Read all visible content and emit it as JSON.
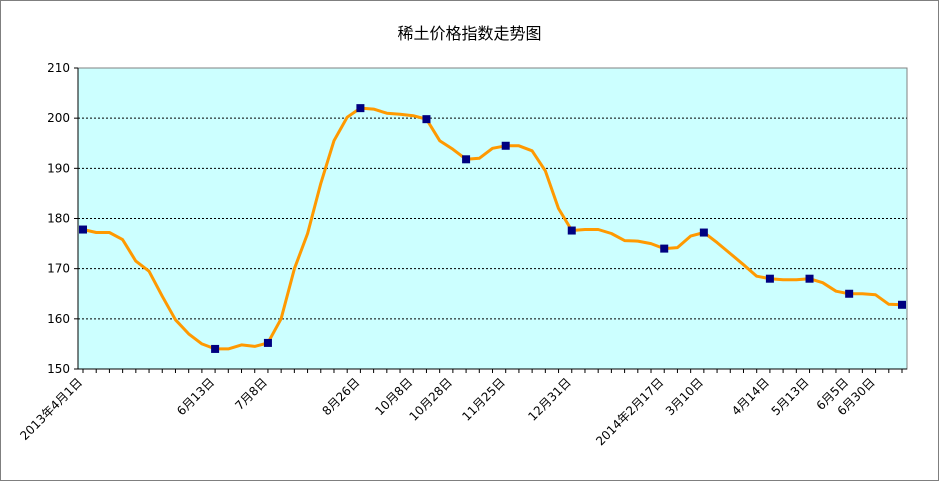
{
  "chart_data": {
    "type": "line",
    "title": "稀土价格指数走势图",
    "xlabel": "",
    "ylabel": "",
    "ylim": [
      150,
      210
    ],
    "yticks": [
      150,
      160,
      170,
      180,
      190,
      200,
      210
    ],
    "grid": true,
    "plot_background": "#ccffff",
    "line_color": "#ff9900",
    "marker_color": "#000080",
    "xticklabels": [
      "2013年4月1日",
      "6月13日",
      "7月8日",
      "8月26日",
      "10月8日",
      "10月28日",
      "11月25日",
      "12月31日",
      "2014年2月17日",
      "3月10日",
      "4月14日",
      "5月13日",
      "6月5日",
      "6月30日"
    ],
    "x_index_max": 62,
    "label_positions": [
      0,
      10,
      14,
      21,
      25,
      28,
      32,
      37,
      44,
      47,
      52,
      55,
      58,
      60
    ],
    "series": [
      {
        "x": [
          0,
          1,
          2,
          3,
          4,
          5,
          6,
          7,
          8,
          9,
          10,
          11,
          12,
          13,
          14,
          15,
          16,
          17,
          18,
          19,
          20,
          21,
          22,
          23,
          24,
          25,
          26,
          27,
          28,
          29,
          30,
          31,
          32,
          33,
          34,
          35,
          36,
          37,
          38,
          39,
          40,
          41,
          42,
          43,
          44,
          45,
          46,
          47,
          48,
          49,
          50,
          51,
          52,
          53,
          54,
          55,
          56,
          57,
          58,
          59,
          60,
          61,
          62
        ],
        "values": [
          177.8,
          177.2,
          177.2,
          175.8,
          171.5,
          169.5,
          164.5,
          159.8,
          157,
          155,
          154,
          154,
          154.8,
          154.5,
          155.2,
          160,
          170,
          177,
          187,
          195.5,
          200.2,
          202,
          201.8,
          201,
          200.8,
          200.5,
          199.8,
          195.5,
          193.8,
          191.8,
          192,
          194,
          194.5,
          194.5,
          193.5,
          189.5,
          182,
          177.6,
          177.8,
          177.8,
          177,
          175.6,
          175.5,
          175,
          174,
          174.2,
          176.5,
          177.2,
          175.2,
          173,
          170.8,
          168.5,
          168,
          167.8,
          167.8,
          168,
          167.2,
          165.5,
          165,
          165,
          164.8,
          162.9,
          162.8
        ],
        "markers": [
          0,
          10,
          14,
          21,
          26,
          29,
          32,
          37,
          44,
          47,
          52,
          55,
          58,
          62
        ]
      }
    ]
  }
}
